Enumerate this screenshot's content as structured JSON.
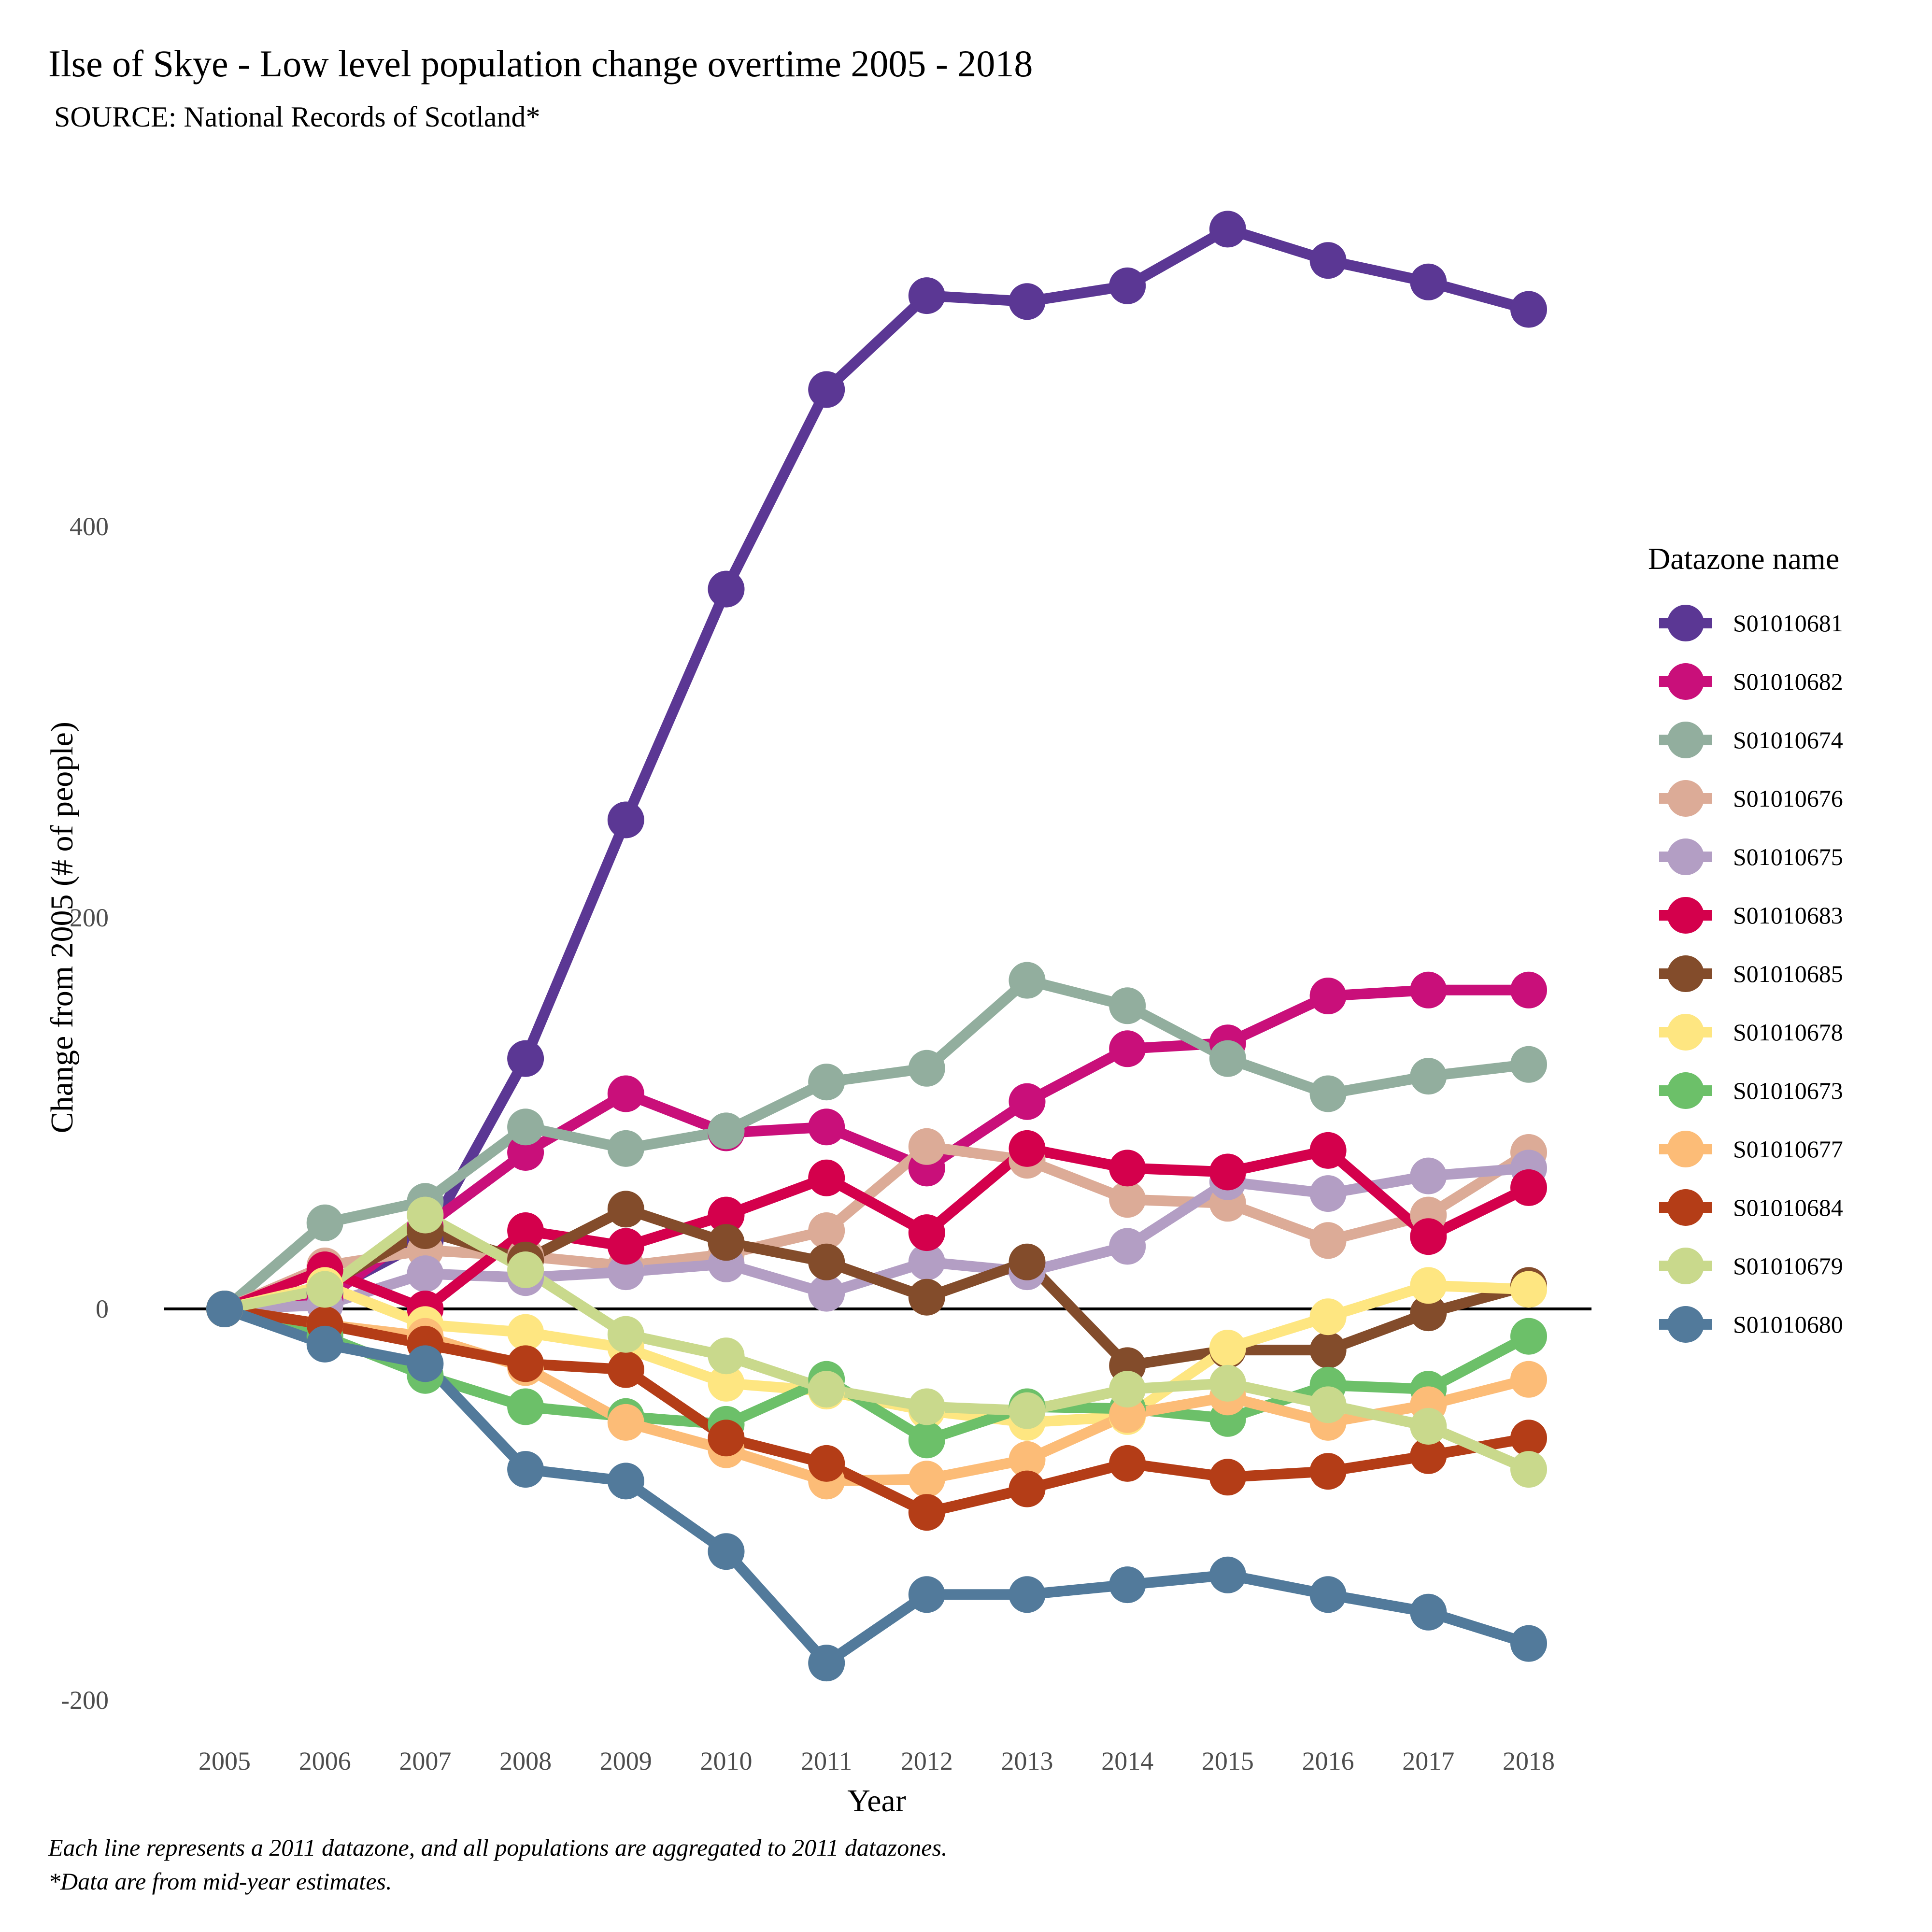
{
  "chart_data": {
    "type": "line",
    "title": "Ilse of Skye - Low level population change overtime 2005 - 2018",
    "subtitle": "SOURCE: National Records of Scotland*",
    "xlabel": "Year",
    "ylabel": "Change from 2005 (# of people)",
    "legend_title": "Datazone name",
    "legend_position": "right",
    "grid": false,
    "zero_line": true,
    "ylim": [
      -220,
      600
    ],
    "y_ticks": [
      -200,
      0,
      200,
      400
    ],
    "y_tick_labels": [
      "-200",
      "0",
      "200",
      "400"
    ],
    "x": [
      2005,
      2006,
      2007,
      2008,
      2009,
      2010,
      2011,
      2012,
      2013,
      2014,
      2015,
      2016,
      2017,
      2018
    ],
    "x_tick_labels": [
      "2005",
      "2006",
      "2007",
      "2008",
      "2009",
      "2010",
      "2011",
      "2012",
      "2013",
      "2014",
      "2015",
      "2016",
      "2017",
      "2018"
    ],
    "caption": [
      "Each line represents a 2011 datazone, and all populations are aggregated to 2011 datazones.",
      "*Data are from mid-year estimates."
    ],
    "series": [
      {
        "name": "S01010681",
        "color": "#5b3794",
        "values": [
          0,
          8,
          35,
          128,
          250,
          368,
          470,
          518,
          515,
          523,
          552,
          536,
          525,
          511
        ]
      },
      {
        "name": "S01010682",
        "color": "#c90f7a",
        "values": [
          0,
          5,
          42,
          80,
          110,
          90,
          93,
          72,
          106,
          133,
          136,
          160,
          163,
          163
        ]
      },
      {
        "name": "S01010674",
        "color": "#92ae9e",
        "values": [
          0,
          44,
          55,
          93,
          82,
          91,
          116,
          123,
          168,
          155,
          128,
          110,
          119,
          125
        ]
      },
      {
        "name": "S01010676",
        "color": "#dcab97",
        "values": [
          0,
          22,
          30,
          27,
          22,
          28,
          40,
          83,
          76,
          56,
          54,
          35,
          48,
          80
        ]
      },
      {
        "name": "S01010675",
        "color": "#b39ec4",
        "values": [
          0,
          2,
          18,
          16,
          19,
          23,
          8,
          24,
          19,
          32,
          65,
          59,
          68,
          72
        ]
      },
      {
        "name": "S01010683",
        "color": "#d4004c",
        "values": [
          0,
          20,
          0,
          40,
          32,
          48,
          67,
          39,
          82,
          72,
          70,
          81,
          37,
          62
        ]
      },
      {
        "name": "S01010685",
        "color": "#834c2b",
        "values": [
          0,
          12,
          40,
          25,
          51,
          34,
          24,
          6,
          24,
          -29,
          -21,
          -21,
          -2,
          12
        ]
      },
      {
        "name": "S01010678",
        "color": "#fee681",
        "values": [
          0,
          12,
          -8,
          -12,
          -20,
          -38,
          -42,
          -52,
          -58,
          -55,
          -20,
          -4,
          12,
          10
        ]
      },
      {
        "name": "S01010673",
        "color": "#6cc069",
        "values": [
          0,
          -14,
          -34,
          -50,
          -55,
          -59,
          -36,
          -67,
          -50,
          -51,
          -56,
          -39,
          -41,
          -14
        ]
      },
      {
        "name": "S01010677",
        "color": "#fcbc77",
        "values": [
          0,
          -8,
          -14,
          -30,
          -58,
          -72,
          -88,
          -87,
          -77,
          -54,
          -45,
          -58,
          -49,
          -36
        ]
      },
      {
        "name": "S01010684",
        "color": "#b43d17",
        "values": [
          0,
          -8,
          -18,
          -28,
          -31,
          -66,
          -79,
          -104,
          -92,
          -79,
          -86,
          -83,
          -75,
          -66
        ]
      },
      {
        "name": "S01010679",
        "color": "#c9d98c",
        "values": [
          0,
          10,
          48,
          20,
          -13,
          -24,
          -41,
          -50,
          -52,
          -41,
          -38,
          -49,
          -60,
          -82
        ]
      },
      {
        "name": "S01010680",
        "color": "#527a9b",
        "values": [
          0,
          -18,
          -28,
          -82,
          -88,
          -124,
          -181,
          -146,
          -146,
          -141,
          -136,
          -146,
          -155,
          -171
        ]
      }
    ]
  }
}
